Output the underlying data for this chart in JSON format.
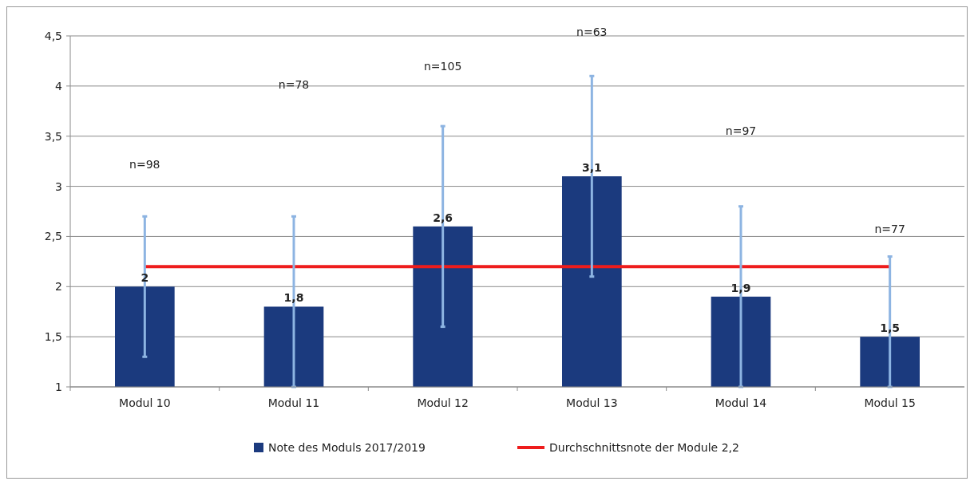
{
  "chart_data": {
    "type": "bar",
    "categories": [
      "Modul 10",
      "Modul 11",
      "Modul 12",
      "Modul 13",
      "Modul 14",
      "Modul 15"
    ],
    "series": [
      {
        "name": "Note des Moduls 2017/2019",
        "color": "#1b3a7e",
        "values": [
          2,
          1.8,
          2.6,
          3.1,
          1.9,
          1.5
        ],
        "errors": [
          [
            1.3,
            2.7
          ],
          [
            1,
            2.7
          ],
          [
            1.6,
            3.6
          ],
          [
            2.1,
            4.1
          ],
          [
            1,
            2.8
          ],
          [
            1,
            2.3
          ]
        ],
        "value_labels": [
          "2",
          "1,8",
          "2,6",
          "3,1",
          "1,9",
          "1,5"
        ]
      },
      {
        "name": "Durchschnittsnote der Module 2,2",
        "type": "line",
        "color": "#ee1c1c",
        "values": [
          2.2,
          2.2,
          2.2,
          2.2,
          2.2,
          2.2
        ],
        "marker": "none"
      }
    ],
    "ylim": [
      1,
      4.5
    ],
    "yticks": [
      1,
      {
        "value": 1.5,
        "label": "1,5"
      },
      2,
      {
        "value": 2.5,
        "label": "2,5"
      },
      3,
      {
        "value": 3.5,
        "label": "3,5"
      },
      4,
      {
        "value": 4.5,
        "label": "4,5"
      }
    ],
    "grid": "y",
    "legend": "bottom",
    "annotations": [
      "n=98",
      "n=78",
      "n=105",
      "n=63",
      "n=97",
      "n=77"
    ]
  }
}
